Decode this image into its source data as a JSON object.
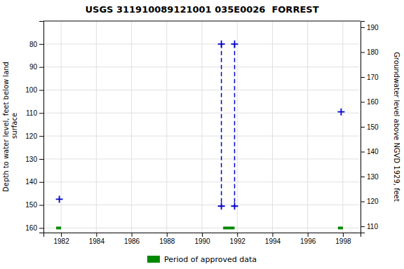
{
  "chart_data": {
    "type": "line",
    "title": "USGS 311910089121001 035E0026  FORREST",
    "ylabel": "Depth to water level, feet below land\n surface",
    "y2label": "Groundwater level above NGVD 1929, feet",
    "xlim": [
      1981,
      1999
    ],
    "xticks": [
      1982,
      1984,
      1986,
      1988,
      1990,
      1992,
      1994,
      1996,
      1998
    ],
    "ylim": [
      162,
      70
    ],
    "yticks": [
      80,
      90,
      100,
      110,
      120,
      130,
      140,
      150,
      160
    ],
    "y2lim": [
      107.5,
      192.5
    ],
    "y2ticks": [
      190,
      180,
      170,
      160,
      150,
      140,
      130,
      120,
      110
    ],
    "grid": true,
    "legend": "bottom",
    "series": [
      {
        "type": "line",
        "color": "#0000CC",
        "line_style": "dashed",
        "marker": "plus",
        "x": [
          1991.1,
          1991.1
        ],
        "values": [
          80.0,
          150.5
        ]
      },
      {
        "type": "line",
        "color": "#0000CC",
        "line_style": "dashed",
        "marker": "plus",
        "x": [
          1991.85,
          1991.85
        ],
        "values": [
          80.0,
          150.5
        ]
      },
      {
        "type": "scatter",
        "color": "#0000CC",
        "marker": "plus",
        "x": [
          1981.9,
          1997.9
        ],
        "values": [
          147.5,
          109.5
        ]
      },
      {
        "name": "Period of approved data",
        "type": "bar",
        "color": "#008800",
        "x": [
          1981.72,
          1991.2,
          1997.72
        ],
        "widths": [
          0.28,
          0.65,
          0.28
        ],
        "values": [
          160.0,
          160.0,
          160.0
        ],
        "bar_height": 1.2
      }
    ]
  }
}
